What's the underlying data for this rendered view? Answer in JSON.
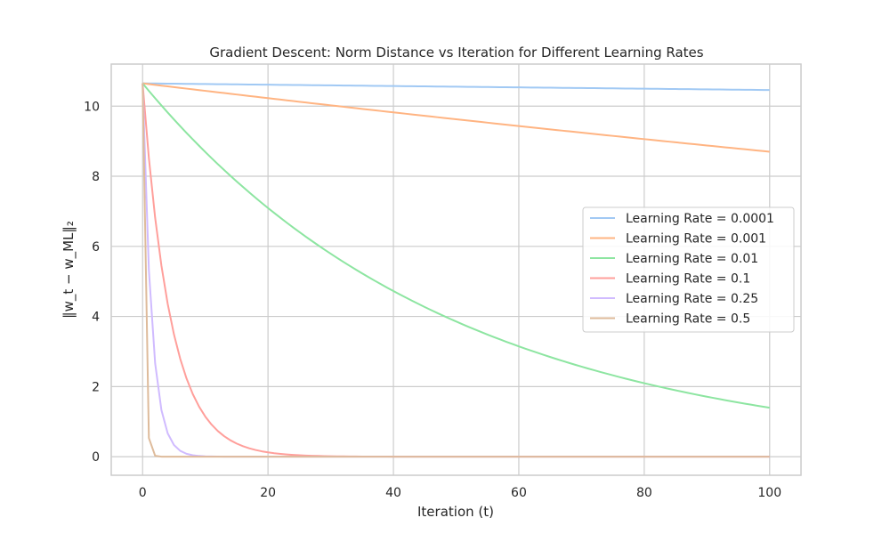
{
  "chart_data": {
    "type": "line",
    "title": "Gradient Descent: Norm Distance vs Iteration for Different Learning Rates",
    "xlabel": "Iteration (t)",
    "ylabel": "‖w_t − w_ML‖₂",
    "xlim": [
      -5,
      105
    ],
    "ylim": [
      -0.53,
      11.2
    ],
    "xticks": [
      0,
      20,
      40,
      60,
      80,
      100
    ],
    "yticks": [
      0,
      2,
      4,
      6,
      8,
      10
    ],
    "grid": true,
    "legend_position": "center-right",
    "series": [
      {
        "name": "Learning Rate = 0.0001",
        "color": "#a1c9f4",
        "start": 10.65,
        "factor": 0.99982
      },
      {
        "name": "Learning Rate = 0.001",
        "color": "#ffb482",
        "start": 10.65,
        "factor": 0.99798
      },
      {
        "name": "Learning Rate = 0.01",
        "color": "#8de5a1",
        "start": 10.65,
        "factor": 0.97989
      },
      {
        "name": "Learning Rate = 0.1",
        "color": "#ff9f9b",
        "start": 10.65,
        "factor": 0.8
      },
      {
        "name": "Learning Rate = 0.25",
        "color": "#d0bbff",
        "start": 10.65,
        "factor": 0.5
      },
      {
        "name": "Learning Rate = 0.5",
        "color": "#debb9b",
        "start": 10.65,
        "factor": 0.05
      }
    ]
  }
}
